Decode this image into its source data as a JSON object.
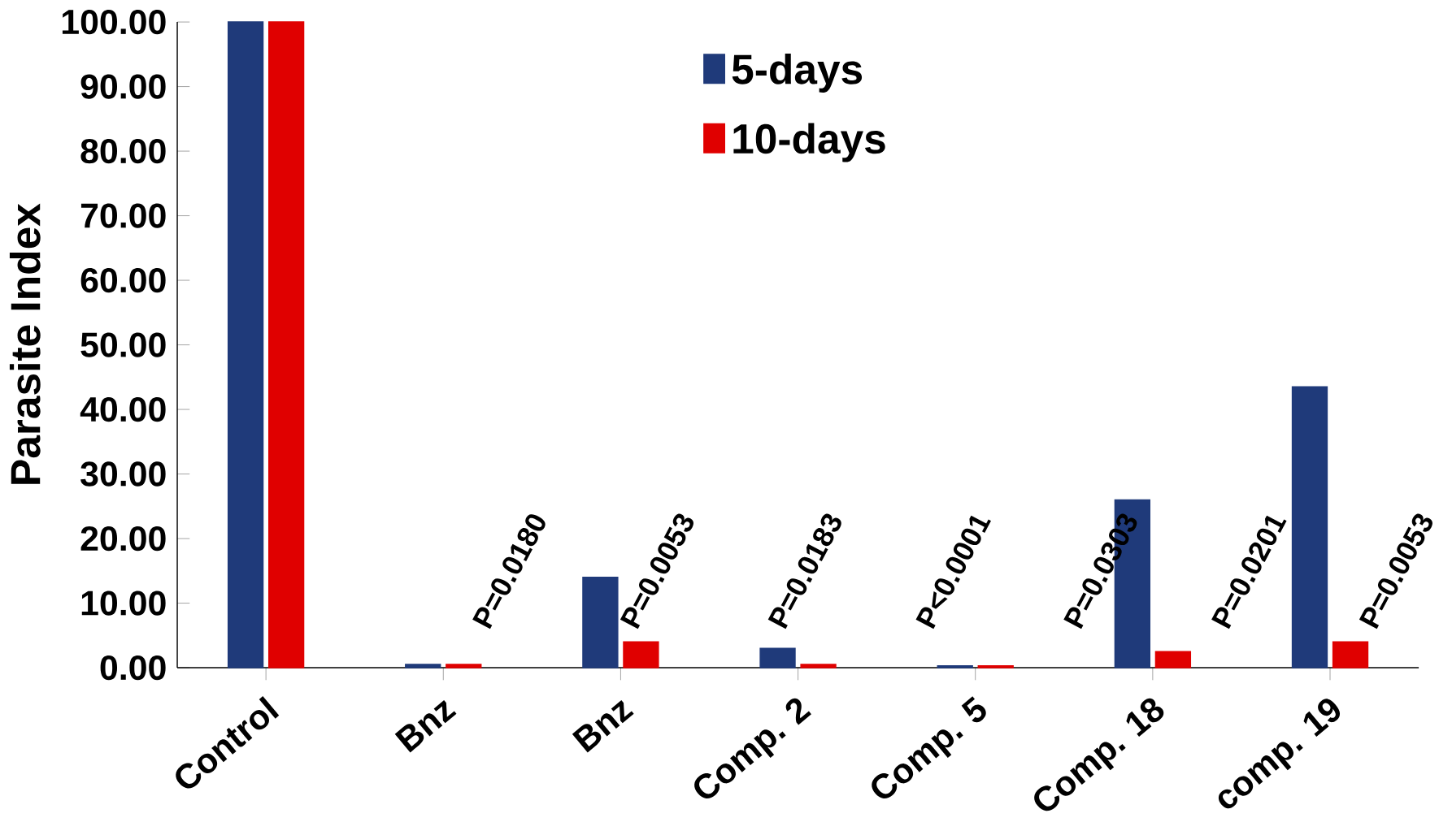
{
  "chart_data": {
    "type": "bar",
    "ylabel": "Parasite Index",
    "categories": [
      "Control",
      "Bnz",
      "Bnz",
      "Comp. 2",
      "Comp. 5",
      "Comp. 18",
      "comp. 19"
    ],
    "series": [
      {
        "name": "5-days",
        "color": "#1f3a7a",
        "values": [
          100,
          0.5,
          14,
          3,
          0.3,
          26,
          43.5
        ]
      },
      {
        "name": "10-days",
        "color": "#e00000",
        "values": [
          100,
          0.5,
          4,
          0.5,
          0.3,
          2.5,
          4
        ]
      }
    ],
    "ylim": [
      0,
      100
    ],
    "yticks": [
      {
        "value": 0,
        "label": "0.00"
      },
      {
        "value": 10,
        "label": "10.00"
      },
      {
        "value": 20,
        "label": "20.00"
      },
      {
        "value": 30,
        "label": "30.00"
      },
      {
        "value": 40,
        "label": "40.00"
      },
      {
        "value": 50,
        "label": "50.00"
      },
      {
        "value": 60,
        "label": "60.00"
      },
      {
        "value": 70,
        "label": "70.00"
      },
      {
        "value": 80,
        "label": "80.00"
      },
      {
        "value": 90,
        "label": "90.00"
      },
      {
        "value": 100,
        "label": "100.00"
      }
    ],
    "annotations": [
      "P=0.0180",
      "P=0.0053",
      "P=0.0183",
      "P<0.0001",
      "P=0.0303",
      "P=0.0201",
      "P=0.0053"
    ],
    "legend": "top",
    "grid": false
  }
}
